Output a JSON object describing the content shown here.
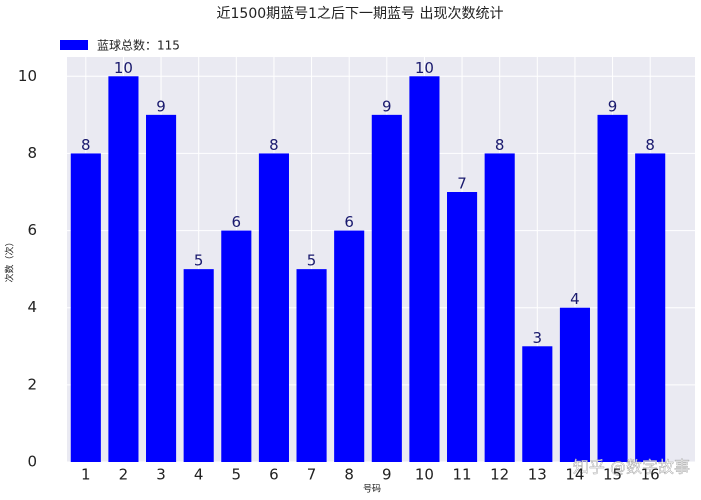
{
  "chart_data": {
    "type": "bar",
    "title": "近1500期蓝号1之后下一期蓝号 出现次数统计",
    "x_label": "号码",
    "y_label": "次数（次）",
    "categories": [
      "1",
      "2",
      "3",
      "4",
      "5",
      "6",
      "7",
      "8",
      "9",
      "10",
      "11",
      "12",
      "13",
      "14",
      "15",
      "16"
    ],
    "series": [
      {
        "name": "蓝球总数：115",
        "color": "#0000ff",
        "values": [
          8,
          10,
          9,
          5,
          6,
          8,
          5,
          6,
          9,
          10,
          7,
          8,
          3,
          4,
          9,
          8
        ]
      }
    ],
    "ylim": [
      0,
      10.5
    ],
    "yticks": [
      0,
      2,
      4,
      6,
      8,
      10
    ],
    "grid": true,
    "legend": "upper-left",
    "watermark": "知乎 @数字故事"
  }
}
